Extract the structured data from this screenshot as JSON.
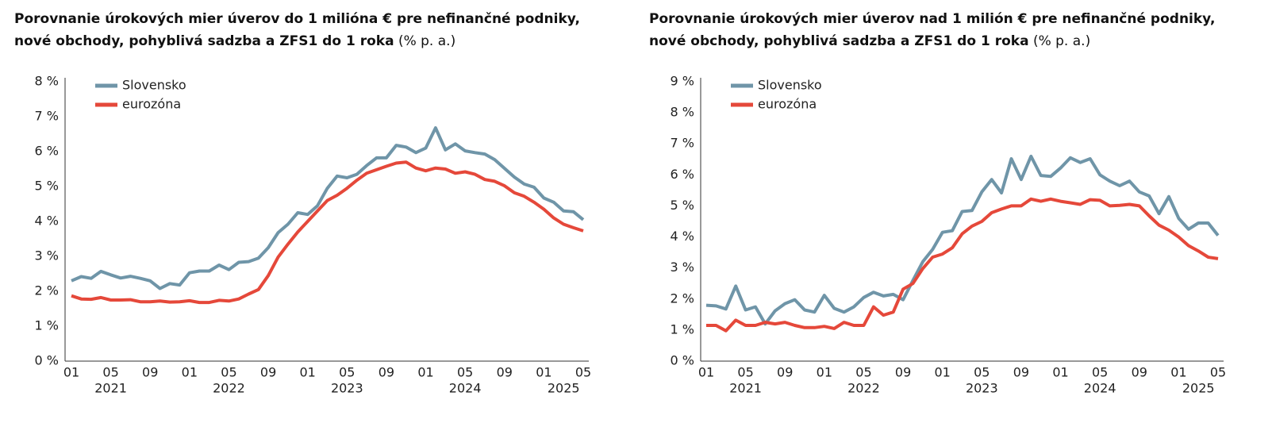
{
  "chart_data": [
    {
      "type": "line",
      "title": "Porovnanie úrokových mier úverov do 1 milióna € pre nefinančné podniky, nové obchody, pohyblivá sadzba a ZFS1 do 1 roka",
      "title_unit": "(% p. a.)",
      "categories": [
        "01",
        null,
        null,
        null,
        "05",
        null,
        null,
        null,
        "09",
        null,
        null,
        null,
        "01",
        null,
        null,
        null,
        "05",
        null,
        null,
        null,
        "09",
        null,
        null,
        null,
        "01",
        null,
        null,
        null,
        "05",
        null,
        null,
        null,
        "09",
        null,
        null,
        null,
        "01",
        null,
        null,
        null,
        "05",
        null,
        null,
        null,
        "09",
        null,
        null,
        null,
        "01",
        null,
        null,
        null,
        "05"
      ],
      "years": [
        "2021",
        "2022",
        "2023",
        "2024",
        "2025"
      ],
      "ylim": [
        0,
        8
      ],
      "yticks": [
        {
          "value": 0,
          "label": "0 %"
        },
        {
          "value": 1,
          "label": "1 %"
        },
        {
          "value": 2,
          "label": "2 %"
        },
        {
          "value": 3,
          "label": "3 %"
        },
        {
          "value": 4,
          "label": "4 %"
        },
        {
          "value": 5,
          "label": "5 %"
        },
        {
          "value": 6,
          "label": "6 %"
        },
        {
          "value": 7,
          "label": "7 %"
        },
        {
          "value": 8,
          "label": "8 %"
        }
      ],
      "legend": "top-left",
      "series": [
        {
          "name": "Slovensko",
          "color": "#6f95a8",
          "values": [
            2.3,
            2.42,
            2.37,
            2.57,
            2.47,
            2.38,
            2.43,
            2.37,
            2.3,
            2.08,
            2.22,
            2.18,
            2.53,
            2.58,
            2.58,
            2.75,
            2.62,
            2.83,
            2.85,
            2.95,
            3.25,
            3.68,
            3.92,
            4.25,
            4.2,
            4.45,
            4.95,
            5.3,
            5.25,
            5.35,
            5.6,
            5.82,
            5.82,
            6.18,
            6.13,
            5.97,
            6.1,
            6.68,
            6.05,
            6.22,
            6.02,
            5.97,
            5.93,
            5.77,
            5.52,
            5.27,
            5.07,
            4.98,
            4.67,
            4.55,
            4.3,
            4.28,
            4.05
          ]
        },
        {
          "name": "eurozóna",
          "color": "#e5483a",
          "values": [
            1.87,
            1.78,
            1.77,
            1.82,
            1.75,
            1.75,
            1.76,
            1.7,
            1.7,
            1.72,
            1.69,
            1.7,
            1.73,
            1.68,
            1.68,
            1.74,
            1.72,
            1.78,
            1.92,
            2.05,
            2.45,
            2.98,
            3.35,
            3.7,
            4.0,
            4.3,
            4.6,
            4.75,
            4.95,
            5.18,
            5.38,
            5.48,
            5.58,
            5.67,
            5.7,
            5.53,
            5.45,
            5.53,
            5.5,
            5.38,
            5.42,
            5.35,
            5.2,
            5.15,
            5.02,
            4.82,
            4.72,
            4.55,
            4.35,
            4.1,
            3.92,
            3.82,
            3.73
          ]
        }
      ]
    },
    {
      "type": "line",
      "title": "Porovnanie úrokových mier úverov nad 1 milión € pre nefinančné podniky, nové obchody, pohyblivá sadzba a ZFS1 do 1 roka",
      "title_unit": "(% p. a.)",
      "categories": [
        "01",
        null,
        null,
        null,
        "05",
        null,
        null,
        null,
        "09",
        null,
        null,
        null,
        "01",
        null,
        null,
        null,
        "05",
        null,
        null,
        null,
        "09",
        null,
        null,
        null,
        "01",
        null,
        null,
        null,
        "05",
        null,
        null,
        null,
        "09",
        null,
        null,
        null,
        "01",
        null,
        null,
        null,
        "05",
        null,
        null,
        null,
        "09",
        null,
        null,
        null,
        "01",
        null,
        null,
        null,
        "05"
      ],
      "years": [
        "2021",
        "2022",
        "2023",
        "2024",
        "2025"
      ],
      "ylim": [
        0,
        9
      ],
      "yticks": [
        {
          "value": 0,
          "label": "0 %"
        },
        {
          "value": 1,
          "label": "1 %"
        },
        {
          "value": 2,
          "label": "2 %"
        },
        {
          "value": 3,
          "label": "3 %"
        },
        {
          "value": 4,
          "label": "4 %"
        },
        {
          "value": 5,
          "label": "5 %"
        },
        {
          "value": 6,
          "label": "6 %"
        },
        {
          "value": 7,
          "label": "7 %"
        },
        {
          "value": 8,
          "label": "8 %"
        },
        {
          "value": 9,
          "label": "9 %"
        }
      ],
      "legend": "top-left",
      "series": [
        {
          "name": "Slovensko",
          "color": "#6f95a8",
          "values": [
            1.8,
            1.78,
            1.68,
            2.42,
            1.65,
            1.75,
            1.2,
            1.62,
            1.85,
            1.98,
            1.65,
            1.58,
            2.12,
            1.7,
            1.58,
            1.75,
            2.05,
            2.22,
            2.1,
            2.15,
            1.98,
            2.6,
            3.2,
            3.6,
            4.15,
            4.2,
            4.82,
            4.85,
            5.45,
            5.85,
            5.42,
            6.52,
            5.85,
            6.6,
            5.98,
            5.95,
            6.22,
            6.55,
            6.4,
            6.52,
            6.0,
            5.8,
            5.65,
            5.8,
            5.45,
            5.32,
            4.75,
            5.3,
            4.6,
            4.25,
            4.45,
            4.45,
            4.05
          ]
        },
        {
          "name": "eurozóna",
          "color": "#e5483a",
          "values": [
            1.15,
            1.15,
            0.98,
            1.32,
            1.15,
            1.15,
            1.25,
            1.2,
            1.25,
            1.15,
            1.08,
            1.08,
            1.12,
            1.05,
            1.25,
            1.15,
            1.15,
            1.75,
            1.48,
            1.58,
            2.32,
            2.5,
            2.98,
            3.35,
            3.45,
            3.65,
            4.1,
            4.35,
            4.5,
            4.78,
            4.9,
            5.0,
            5.0,
            5.22,
            5.15,
            5.22,
            5.15,
            5.1,
            5.05,
            5.2,
            5.18,
            5.0,
            5.02,
            5.05,
            5.0,
            4.68,
            4.38,
            4.22,
            4.0,
            3.72,
            3.55,
            3.35,
            3.3
          ]
        }
      ]
    }
  ]
}
